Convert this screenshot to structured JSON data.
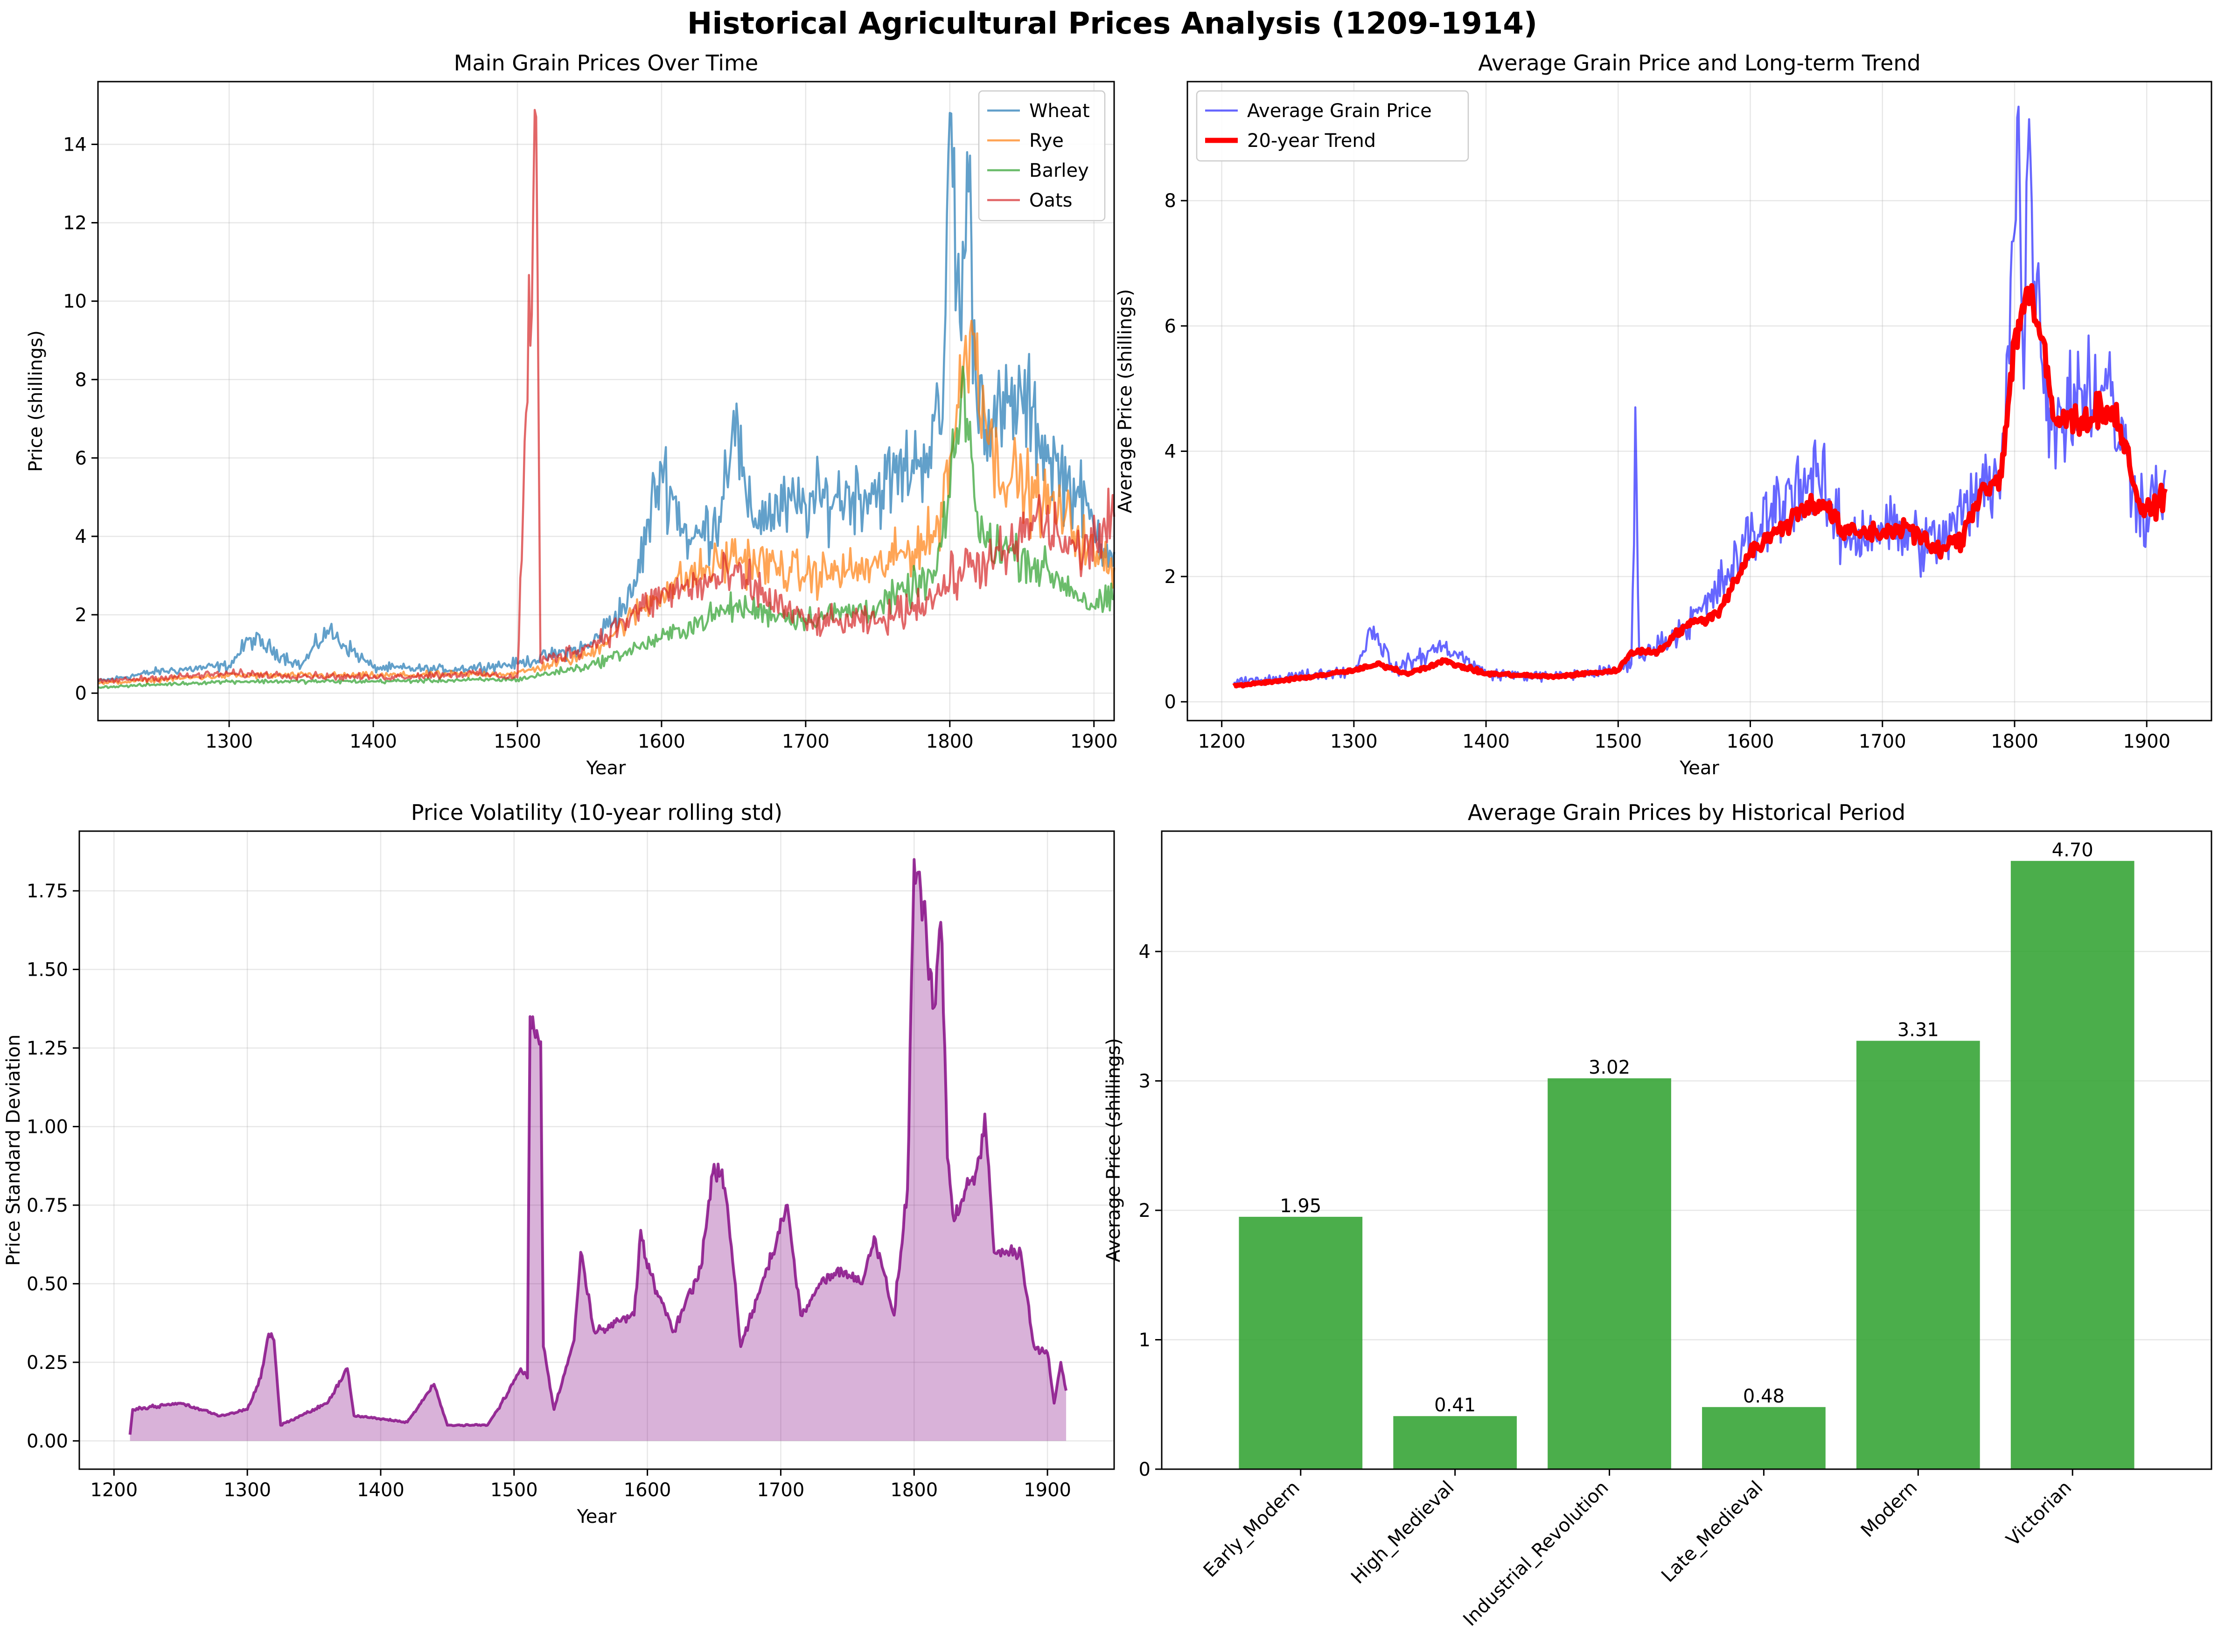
{
  "figure": {
    "title": "Historical Agricultural Prices Analysis (1209-1914)"
  },
  "chart_data": [
    {
      "id": "main-grain",
      "type": "line",
      "title": "Main Grain Prices Over Time",
      "xlabel": "Year",
      "ylabel": "Price (shillings)",
      "xlim": [
        1209,
        1914
      ],
      "ylim": [
        -0.7,
        15.6
      ],
      "xticks": [
        1300,
        1400,
        1500,
        1600,
        1700,
        1800,
        1900
      ],
      "yticks": [
        0,
        2,
        4,
        6,
        8,
        10,
        12,
        14
      ],
      "grid": true,
      "legend": "top-right",
      "series": [
        {
          "name": "Wheat",
          "color": "#1f77b4",
          "anchors": [
            [
              1209,
              0.3
            ],
            [
              1250,
              0.55
            ],
            [
              1300,
              0.7
            ],
            [
              1315,
              1.4
            ],
            [
              1350,
              0.7
            ],
            [
              1368,
              1.6
            ],
            [
              1400,
              0.65
            ],
            [
              1450,
              0.6
            ],
            [
              1500,
              0.75
            ],
            [
              1550,
              1.2
            ],
            [
              1580,
              2.5
            ],
            [
              1600,
              5.8
            ],
            [
              1620,
              3.8
            ],
            [
              1640,
              4.5
            ],
            [
              1650,
              7.2
            ],
            [
              1660,
              4.5
            ],
            [
              1700,
              4.8
            ],
            [
              1720,
              5.0
            ],
            [
              1750,
              5.2
            ],
            [
              1780,
              6.0
            ],
            [
              1795,
              7.0
            ],
            [
              1800,
              14.8
            ],
            [
              1808,
              9.0
            ],
            [
              1812,
              13.8
            ],
            [
              1818,
              8.0
            ],
            [
              1830,
              6.8
            ],
            [
              1850,
              7.5
            ],
            [
              1870,
              6.0
            ],
            [
              1890,
              5.0
            ],
            [
              1900,
              4.2
            ],
            [
              1914,
              3.6
            ]
          ],
          "noise": 0.16
        },
        {
          "name": "Rye",
          "color": "#ff7f0e",
          "anchors": [
            [
              1209,
              0.25
            ],
            [
              1300,
              0.45
            ],
            [
              1400,
              0.45
            ],
            [
              1500,
              0.5
            ],
            [
              1550,
              1.0
            ],
            [
              1600,
              2.6
            ],
            [
              1650,
              3.5
            ],
            [
              1700,
              3.0
            ],
            [
              1750,
              3.2
            ],
            [
              1790,
              4.0
            ],
            [
              1800,
              6.0
            ],
            [
              1815,
              9.5
            ],
            [
              1830,
              6.0
            ],
            [
              1860,
              5.0
            ],
            [
              1880,
              4.5
            ],
            [
              1900,
              3.5
            ],
            [
              1914,
              3.2
            ]
          ],
          "noise": 0.15
        },
        {
          "name": "Barley",
          "color": "#2ca02c",
          "anchors": [
            [
              1209,
              0.15
            ],
            [
              1300,
              0.3
            ],
            [
              1400,
              0.3
            ],
            [
              1500,
              0.35
            ],
            [
              1550,
              0.7
            ],
            [
              1600,
              1.4
            ],
            [
              1650,
              2.2
            ],
            [
              1700,
              1.9
            ],
            [
              1750,
              2.2
            ],
            [
              1790,
              3.0
            ],
            [
              1800,
              5.0
            ],
            [
              1810,
              8.0
            ],
            [
              1820,
              4.0
            ],
            [
              1850,
              3.5
            ],
            [
              1880,
              2.8
            ],
            [
              1900,
              2.2
            ],
            [
              1914,
              2.4
            ]
          ],
          "noise": 0.14
        },
        {
          "name": "Oats",
          "color": "#d62728",
          "anchors": [
            [
              1209,
              0.3
            ],
            [
              1300,
              0.5
            ],
            [
              1400,
              0.4
            ],
            [
              1470,
              0.5
            ],
            [
              1500,
              0.4
            ],
            [
              1513,
              14.7
            ],
            [
              1516,
              0.8
            ],
            [
              1550,
              1.2
            ],
            [
              1600,
              2.5
            ],
            [
              1650,
              3.0
            ],
            [
              1700,
              1.8
            ],
            [
              1750,
              1.8
            ],
            [
              1790,
              2.5
            ],
            [
              1810,
              3.2
            ],
            [
              1840,
              3.5
            ],
            [
              1860,
              4.5
            ],
            [
              1890,
              3.5
            ],
            [
              1914,
              4.5
            ]
          ],
          "noise": 0.17
        }
      ]
    },
    {
      "id": "average-trend",
      "type": "line",
      "title": "Average Grain Price and Long-term Trend",
      "xlabel": "Year",
      "ylabel": "Average Price (shillings)",
      "xlim": [
        1174,
        1949
      ],
      "ylim": [
        -0.3,
        9.9
      ],
      "xticks": [
        1200,
        1300,
        1400,
        1500,
        1600,
        1700,
        1800,
        1900
      ],
      "yticks": [
        0,
        2,
        4,
        6,
        8
      ],
      "grid": true,
      "legend": "top-left",
      "series": [
        {
          "name": "Average Grain Price",
          "color": "#0000ff",
          "anchors": [
            [
              1209,
              0.3
            ],
            [
              1250,
              0.4
            ],
            [
              1300,
              0.5
            ],
            [
              1315,
              1.2
            ],
            [
              1330,
              0.5
            ],
            [
              1368,
              0.9
            ],
            [
              1400,
              0.45
            ],
            [
              1450,
              0.4
            ],
            [
              1500,
              0.5
            ],
            [
              1510,
              0.6
            ],
            [
              1513,
              4.7
            ],
            [
              1516,
              0.7
            ],
            [
              1550,
              1.2
            ],
            [
              1570,
              1.6
            ],
            [
              1600,
              2.6
            ],
            [
              1630,
              3.4
            ],
            [
              1650,
              3.6
            ],
            [
              1670,
              2.6
            ],
            [
              1700,
              2.8
            ],
            [
              1740,
              2.5
            ],
            [
              1770,
              3.2
            ],
            [
              1790,
              3.8
            ],
            [
              1800,
              7.5
            ],
            [
              1803,
              9.5
            ],
            [
              1807,
              5.0
            ],
            [
              1811,
              9.3
            ],
            [
              1820,
              5.5
            ],
            [
              1830,
              4.5
            ],
            [
              1850,
              5.0
            ],
            [
              1870,
              5.0
            ],
            [
              1890,
              3.5
            ],
            [
              1900,
              3.0
            ],
            [
              1914,
              3.7
            ]
          ],
          "noise": 0.17
        },
        {
          "name": "20-year Trend",
          "color": "#ff0000",
          "anchors": [
            [
              1209,
              0.25
            ],
            [
              1250,
              0.35
            ],
            [
              1300,
              0.5
            ],
            [
              1320,
              0.6
            ],
            [
              1340,
              0.45
            ],
            [
              1368,
              0.65
            ],
            [
              1400,
              0.45
            ],
            [
              1450,
              0.4
            ],
            [
              1500,
              0.5
            ],
            [
              1510,
              0.8
            ],
            [
              1530,
              0.8
            ],
            [
              1550,
              1.2
            ],
            [
              1575,
              1.4
            ],
            [
              1600,
              2.4
            ],
            [
              1620,
              2.7
            ],
            [
              1640,
              3.1
            ],
            [
              1655,
              3.2
            ],
            [
              1670,
              2.7
            ],
            [
              1700,
              2.7
            ],
            [
              1720,
              2.8
            ],
            [
              1740,
              2.4
            ],
            [
              1760,
              2.6
            ],
            [
              1775,
              3.4
            ],
            [
              1790,
              3.6
            ],
            [
              1800,
              5.8
            ],
            [
              1810,
              6.6
            ],
            [
              1820,
              5.8
            ],
            [
              1830,
              4.5
            ],
            [
              1850,
              4.5
            ],
            [
              1870,
              4.7
            ],
            [
              1880,
              4.4
            ],
            [
              1895,
              3.1
            ],
            [
              1905,
              3.0
            ],
            [
              1914,
              3.4
            ]
          ],
          "noise": 0.05
        }
      ]
    },
    {
      "id": "volatility",
      "type": "area",
      "title": "Price Volatility (10-year rolling std)",
      "xlabel": "Year",
      "ylabel": "Price Standard Deviation",
      "xlim": [
        1174,
        1950
      ],
      "ylim": [
        -0.09,
        1.94
      ],
      "xticks": [
        1200,
        1300,
        1400,
        1500,
        1600,
        1700,
        1800,
        1900
      ],
      "yticks": [
        0.0,
        0.25,
        0.5,
        0.75,
        1.0,
        1.25,
        1.5,
        1.75
      ],
      "ytick_labels": [
        "0.00",
        "0.25",
        "0.50",
        "0.75",
        "1.00",
        "1.25",
        "1.50",
        "1.75"
      ],
      "grid": true,
      "series": [
        {
          "name": "",
          "color": "#800080",
          "anchors": [
            [
              1212,
              0.02
            ],
            [
              1214,
              0.1
            ],
            [
              1250,
              0.12
            ],
            [
              1280,
              0.08
            ],
            [
              1300,
              0.1
            ],
            [
              1310,
              0.2
            ],
            [
              1316,
              0.34
            ],
            [
              1320,
              0.32
            ],
            [
              1325,
              0.05
            ],
            [
              1360,
              0.12
            ],
            [
              1375,
              0.23
            ],
            [
              1380,
              0.08
            ],
            [
              1420,
              0.06
            ],
            [
              1440,
              0.18
            ],
            [
              1450,
              0.05
            ],
            [
              1480,
              0.05
            ],
            [
              1495,
              0.15
            ],
            [
              1505,
              0.23
            ],
            [
              1510,
              0.2
            ],
            [
              1512,
              1.35
            ],
            [
              1520,
              1.27
            ],
            [
              1522,
              0.3
            ],
            [
              1530,
              0.1
            ],
            [
              1545,
              0.32
            ],
            [
              1550,
              0.6
            ],
            [
              1560,
              0.35
            ],
            [
              1590,
              0.4
            ],
            [
              1595,
              0.67
            ],
            [
              1600,
              0.55
            ],
            [
              1620,
              0.35
            ],
            [
              1640,
              0.55
            ],
            [
              1648,
              0.84
            ],
            [
              1655,
              0.85
            ],
            [
              1660,
              0.75
            ],
            [
              1670,
              0.3
            ],
            [
              1690,
              0.55
            ],
            [
              1705,
              0.75
            ],
            [
              1715,
              0.4
            ],
            [
              1730,
              0.5
            ],
            [
              1745,
              0.55
            ],
            [
              1760,
              0.5
            ],
            [
              1770,
              0.65
            ],
            [
              1785,
              0.4
            ],
            [
              1795,
              0.8
            ],
            [
              1800,
              1.85
            ],
            [
              1805,
              1.75
            ],
            [
              1812,
              1.5
            ],
            [
              1815,
              1.38
            ],
            [
              1820,
              1.65
            ],
            [
              1825,
              0.9
            ],
            [
              1830,
              0.7
            ],
            [
              1850,
              0.9
            ],
            [
              1853,
              1.04
            ],
            [
              1860,
              0.6
            ],
            [
              1880,
              0.6
            ],
            [
              1890,
              0.3
            ],
            [
              1900,
              0.28
            ],
            [
              1905,
              0.12
            ],
            [
              1910,
              0.25
            ],
            [
              1914,
              0.16
            ]
          ],
          "noise": 0.035
        }
      ]
    },
    {
      "id": "periods",
      "type": "bar",
      "title": "Average Grain Prices by Historical Period",
      "xlabel": "",
      "ylabel": "Average Price (shillings)",
      "ylim": [
        0,
        4.93
      ],
      "yticks": [
        0,
        1,
        2,
        3,
        4
      ],
      "grid": true,
      "color": "#2ca02c",
      "categories": [
        "Early_Modern",
        "High_Medieval",
        "Industrial_Revolution",
        "Late_Medieval",
        "Modern",
        "Victorian"
      ],
      "values": [
        1.95,
        0.41,
        3.02,
        0.48,
        3.31,
        4.7
      ],
      "value_labels": [
        "1.95",
        "0.41",
        "3.02",
        "0.48",
        "3.31",
        "4.70"
      ]
    }
  ]
}
